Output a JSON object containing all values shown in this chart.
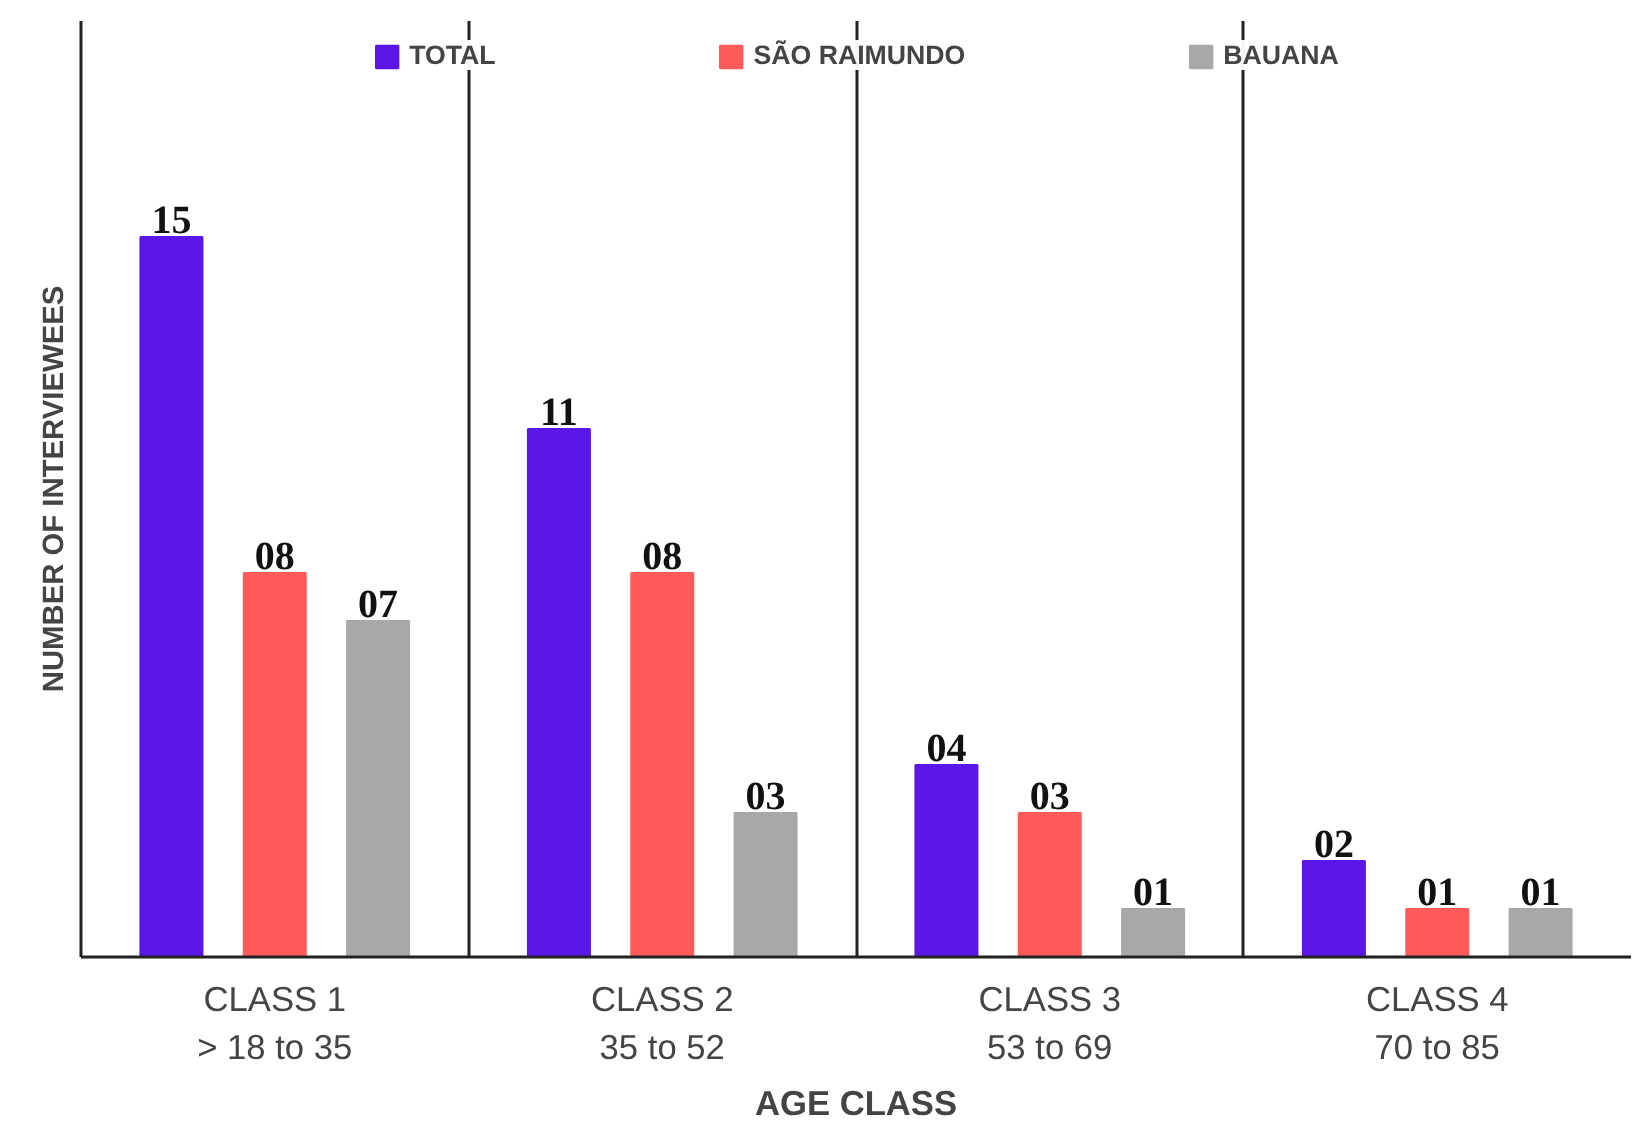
{
  "chart_data": {
    "type": "bar",
    "xlabel": "AGE CLASS",
    "ylabel": "NUMBER OF INTERVIEWEES",
    "categories": [
      "CLASS 1\n> 18 to 35",
      "CLASS 2\n35 to 52",
      "CLASS 3\n53 to 69",
      "CLASS 4\n70 to 85"
    ],
    "series": [
      {
        "name": "TOTAL",
        "color": "#5b17e8",
        "values": [
          15,
          11,
          4,
          2
        ],
        "value_labels": [
          "15",
          "11",
          "04",
          "02"
        ]
      },
      {
        "name": "SÃO RAIMUNDO",
        "color": "#ff5a5a",
        "values": [
          8,
          8,
          3,
          1
        ],
        "value_labels": [
          "08",
          "08",
          "03",
          "01"
        ]
      },
      {
        "name": "BAUANA",
        "color": "#a8a8a8",
        "values": [
          7,
          3,
          1,
          1
        ],
        "value_labels": [
          "07",
          "03",
          "01",
          "01"
        ]
      }
    ],
    "legend": "top",
    "grid": "x",
    "tick_labels": "x"
  }
}
